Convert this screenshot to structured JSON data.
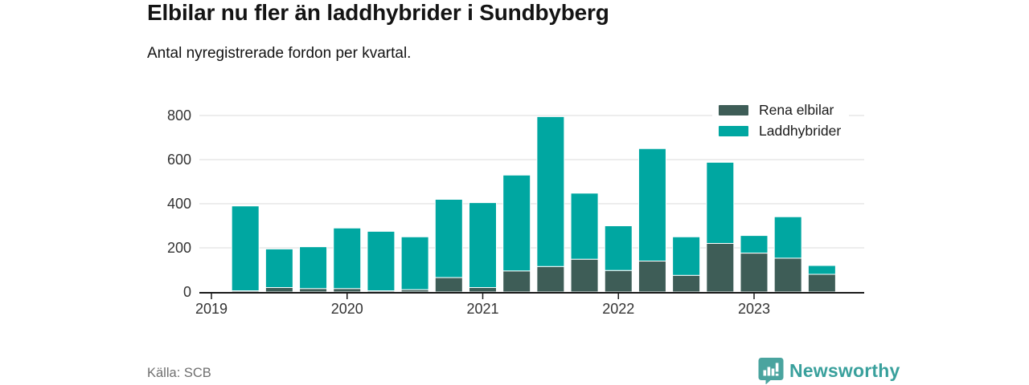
{
  "header": {
    "title": "Elbilar nu fler än laddhybrider i Sundbyberg",
    "subtitle": "Antal nyregistrerade fordon per kvartal."
  },
  "legend": [
    {
      "label": "Rena elbilar",
      "color": "#3e5d57"
    },
    {
      "label": "Laddhybrider",
      "color": "#00a7a1"
    }
  ],
  "footer": {
    "source": "Källa: SCB",
    "brand": "Newsworthy",
    "brand_icon": "newsworthy-bar-chart-bubble-logo",
    "brand_color": "#39a09c"
  },
  "colors": {
    "elbilar": "#3e5d57",
    "laddhybrider": "#00a7a1",
    "axis": "#1a1a1a",
    "grid": "#e2e2e2",
    "tick_label": "#333333",
    "background": "#ffffff"
  },
  "chart_data": {
    "type": "bar",
    "stacked": true,
    "title": "Elbilar nu fler än laddhybrider i Sundbyberg",
    "subtitle": "Antal nyregistrerade fordon per kvartal.",
    "xlabel": "",
    "ylabel": "",
    "ylim": [
      0,
      800
    ],
    "yticks": [
      0,
      200,
      400,
      600,
      800
    ],
    "xticks": [
      "2019",
      "2020",
      "2021",
      "2022",
      "2023"
    ],
    "grid": true,
    "legend_position": "top-right",
    "categories": [
      "2019 Q2",
      "2019 Q3",
      "2019 Q4",
      "2020 Q1",
      "2020 Q2",
      "2020 Q3",
      "2020 Q4",
      "2021 Q1",
      "2021 Q2",
      "2021 Q3",
      "2021 Q4",
      "2022 Q1",
      "2022 Q2",
      "2022 Q3",
      "2022 Q4",
      "2023 Q1",
      "2023 Q2",
      "2023 Q3"
    ],
    "series": [
      {
        "name": "Rena elbilar",
        "color": "#3e5d57",
        "values": [
          5,
          20,
          15,
          15,
          5,
          10,
          65,
          20,
          95,
          115,
          148,
          97,
          140,
          75,
          220,
          176,
          153,
          80
        ]
      },
      {
        "name": "Laddhybrider",
        "color": "#00a7a1",
        "values": [
          385,
          175,
          190,
          275,
          270,
          240,
          355,
          385,
          435,
          680,
          300,
          203,
          510,
          175,
          368,
          80,
          188,
          40
        ]
      }
    ]
  }
}
